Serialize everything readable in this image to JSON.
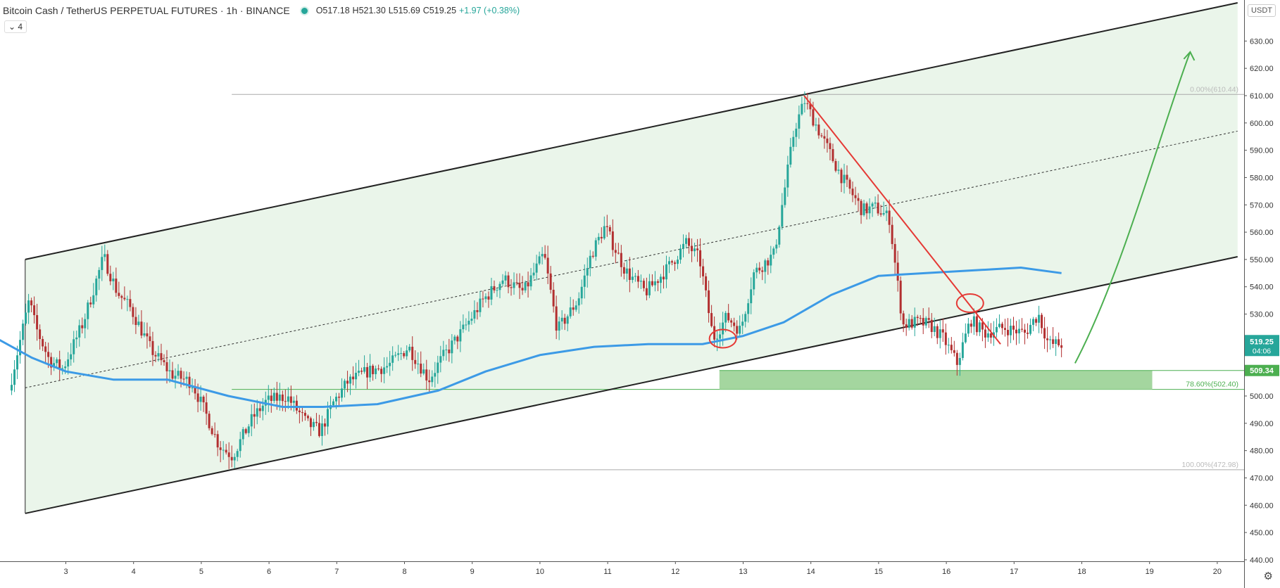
{
  "header": {
    "symbol": "Bitcoin Cash / TetherUS PERPETUAL FUTURES · 1h · BINANCE",
    "open": "O517.18",
    "high": "H521.30",
    "low": "L515.69",
    "close": "C519.25",
    "change": "+1.97 (+0.38%)",
    "indicator_count": "4"
  },
  "currency": "USDT",
  "price_tag": {
    "value": "519.25",
    "countdown": "04:06",
    "color": "#26a69a"
  },
  "zone_tag": {
    "value": "509.34",
    "color": "#4caf50"
  },
  "fib_labels": [
    {
      "text": "0.00%(610.44)",
      "price": 610.44
    },
    {
      "text": "78.60%(502.40)",
      "price": 502.4
    },
    {
      "text": "100.00%(472.98)",
      "price": 472.98
    }
  ],
  "colors": {
    "up": "#26a69a",
    "down": "#b22f30",
    "ma": "#3c9ae6",
    "channel_fill": "#eaf5ea",
    "trendline": "#e53935",
    "arrow": "#4caf50",
    "zone": "#9fd49a"
  },
  "chart_data": {
    "type": "candlestick",
    "symbol": "BCHUSDT",
    "interval": "1h",
    "x_ticks": [
      "3",
      "4",
      "5",
      "6",
      "7",
      "8",
      "9",
      "10",
      "11",
      "12",
      "13",
      "14",
      "15",
      "16",
      "17",
      "18",
      "19",
      "20"
    ],
    "y_ticks": [
      440,
      450,
      460,
      470,
      480,
      490,
      500,
      510,
      520,
      530,
      540,
      550,
      560,
      570,
      580,
      590,
      600,
      610,
      620,
      630
    ],
    "ylim": [
      433,
      636
    ],
    "current_price": 519.25,
    "support_zone": [
      502.4,
      509.34
    ],
    "price_path": [
      [
        2.2,
        502
      ],
      [
        2.5,
        535
      ],
      [
        2.6,
        525
      ],
      [
        2.8,
        513
      ],
      [
        3.0,
        510
      ],
      [
        3.3,
        527
      ],
      [
        3.6,
        551
      ],
      [
        3.8,
        538
      ],
      [
        4.0,
        532
      ],
      [
        4.3,
        517
      ],
      [
        4.6,
        508
      ],
      [
        4.9,
        505
      ],
      [
        5.1,
        494
      ],
      [
        5.3,
        482
      ],
      [
        5.5,
        478
      ],
      [
        5.8,
        492
      ],
      [
        6.0,
        498
      ],
      [
        6.3,
        500
      ],
      [
        6.6,
        490
      ],
      [
        6.8,
        487
      ],
      [
        7.0,
        498
      ],
      [
        7.2,
        505
      ],
      [
        7.5,
        509
      ],
      [
        7.8,
        511
      ],
      [
        8.1,
        518
      ],
      [
        8.4,
        506
      ],
      [
        8.6,
        514
      ],
      [
        8.9,
        524
      ],
      [
        9.2,
        535
      ],
      [
        9.5,
        543
      ],
      [
        9.8,
        538
      ],
      [
        10.1,
        552
      ],
      [
        10.3,
        524
      ],
      [
        10.6,
        535
      ],
      [
        10.8,
        552
      ],
      [
        11.0,
        562
      ],
      [
        11.3,
        546
      ],
      [
        11.6,
        538
      ],
      [
        11.9,
        546
      ],
      [
        12.2,
        556
      ],
      [
        12.4,
        550
      ],
      [
        12.6,
        521
      ],
      [
        12.8,
        529
      ],
      [
        13.0,
        524
      ],
      [
        13.2,
        545
      ],
      [
        13.5,
        552
      ],
      [
        13.8,
        598
      ],
      [
        13.95,
        608
      ],
      [
        14.2,
        595
      ],
      [
        14.5,
        580
      ],
      [
        14.8,
        568
      ],
      [
        15.0,
        569
      ],
      [
        15.2,
        565
      ],
      [
        15.4,
        526
      ],
      [
        15.6,
        527
      ],
      [
        15.8,
        526
      ],
      [
        16.0,
        521
      ],
      [
        16.2,
        512
      ],
      [
        16.4,
        528
      ],
      [
        16.6,
        523
      ],
      [
        16.9,
        525
      ],
      [
        17.2,
        523
      ],
      [
        17.4,
        530
      ],
      [
        17.55,
        519
      ],
      [
        17.7,
        519
      ]
    ],
    "ma_line": [
      [
        1.4,
        529
      ],
      [
        2.5,
        514
      ],
      [
        3.0,
        509
      ],
      [
        3.7,
        506
      ],
      [
        4.5,
        506
      ],
      [
        5.4,
        500
      ],
      [
        6.2,
        496
      ],
      [
        6.8,
        496
      ],
      [
        7.6,
        497
      ],
      [
        8.5,
        502
      ],
      [
        9.2,
        509
      ],
      [
        10.0,
        515
      ],
      [
        10.8,
        518
      ],
      [
        11.6,
        519
      ],
      [
        12.4,
        519
      ],
      [
        13.0,
        522
      ],
      [
        13.6,
        527
      ],
      [
        14.3,
        537
      ],
      [
        15.0,
        544
      ],
      [
        15.7,
        545
      ],
      [
        16.4,
        546
      ],
      [
        17.1,
        547
      ],
      [
        17.7,
        545
      ]
    ],
    "channel": {
      "lower": [
        [
          2.4,
          457
        ],
        [
          20.3,
          551
        ]
      ],
      "upper": [
        [
          2.4,
          550
        ],
        [
          20.3,
          644
        ]
      ],
      "mid": [
        [
          2.4,
          503
        ],
        [
          20.3,
          597
        ]
      ]
    },
    "fib_levels": [
      {
        "level": "0.00%",
        "price": 610.44
      },
      {
        "level": "78.60%",
        "price": 502.4
      },
      {
        "level": "100.00%",
        "price": 472.98
      }
    ],
    "trendline": [
      [
        13.9,
        610
      ],
      [
        16.8,
        519
      ]
    ],
    "projection_arrow": [
      [
        17.9,
        512
      ],
      [
        18.6,
        545
      ],
      [
        19.2,
        600
      ],
      [
        19.6,
        626
      ]
    ],
    "highlight_points": [
      [
        12.7,
        521
      ],
      [
        16.35,
        534
      ]
    ]
  }
}
